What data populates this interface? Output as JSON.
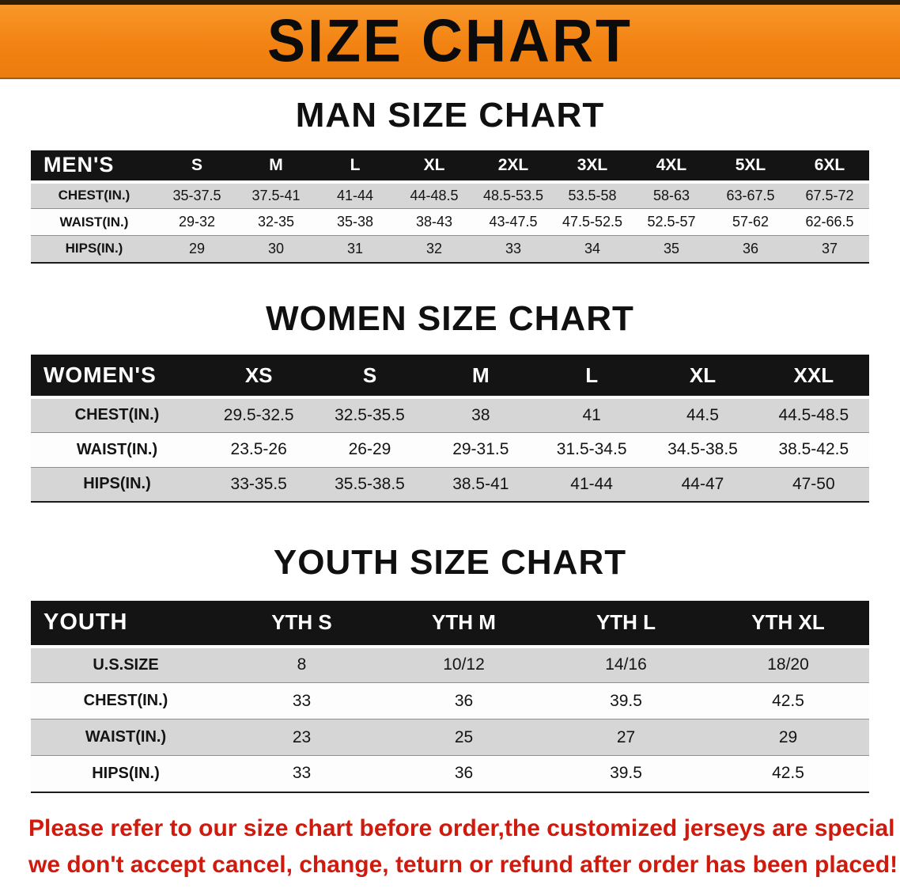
{
  "banner": {
    "title": "SIZE CHART",
    "bg_color": "#f28312",
    "text_color": "#0b0b0b"
  },
  "sections": [
    {
      "id": "men",
      "heading": "MAN SIZE CHART",
      "table": {
        "header": [
          "MEN'S",
          "S",
          "M",
          "L",
          "XL",
          "2XL",
          "3XL",
          "4XL",
          "5XL",
          "6XL"
        ],
        "rows": [
          [
            "CHEST(IN.)",
            "35-37.5",
            "37.5-41",
            "41-44",
            "44-48.5",
            "48.5-53.5",
            "53.5-58",
            "58-63",
            "63-67.5",
            "67.5-72"
          ],
          [
            "WAIST(IN.)",
            "29-32",
            "32-35",
            "35-38",
            "38-43",
            "43-47.5",
            "47.5-52.5",
            "52.5-57",
            "57-62",
            "62-66.5"
          ],
          [
            "HIPS(IN.)",
            "29",
            "30",
            "31",
            "32",
            "33",
            "34",
            "35",
            "36",
            "37"
          ]
        ]
      }
    },
    {
      "id": "women",
      "heading": "WOMEN SIZE CHART",
      "table": {
        "header": [
          "WOMEN'S",
          "XS",
          "S",
          "M",
          "L",
          "XL",
          "XXL"
        ],
        "rows": [
          [
            "CHEST(IN.)",
            "29.5-32.5",
            "32.5-35.5",
            "38",
            "41",
            "44.5",
            "44.5-48.5"
          ],
          [
            "WAIST(IN.)",
            "23.5-26",
            "26-29",
            "29-31.5",
            "31.5-34.5",
            "34.5-38.5",
            "38.5-42.5"
          ],
          [
            "HIPS(IN.)",
            "33-35.5",
            "35.5-38.5",
            "38.5-41",
            "41-44",
            "44-47",
            "47-50"
          ]
        ]
      }
    },
    {
      "id": "youth",
      "heading": "YOUTH SIZE CHART",
      "table": {
        "header": [
          "YOUTH",
          "YTH S",
          "YTH M",
          "YTH L",
          "YTH XL"
        ],
        "rows": [
          [
            "U.S.SIZE",
            "8",
            "10/12",
            "14/16",
            "18/20"
          ],
          [
            "CHEST(IN.)",
            "33",
            "36",
            "39.5",
            "42.5"
          ],
          [
            "WAIST(IN.)",
            "23",
            "25",
            "27",
            "29"
          ],
          [
            "HIPS(IN.)",
            "33",
            "36",
            "39.5",
            "42.5"
          ]
        ]
      }
    }
  ],
  "disclaimer": {
    "line1": "Please refer to our size chart before order,the customized jerseys are special products,",
    "line2": "we don't accept cancel, change, teturn or refund after order has been placed!",
    "color": "#d01a0e"
  }
}
